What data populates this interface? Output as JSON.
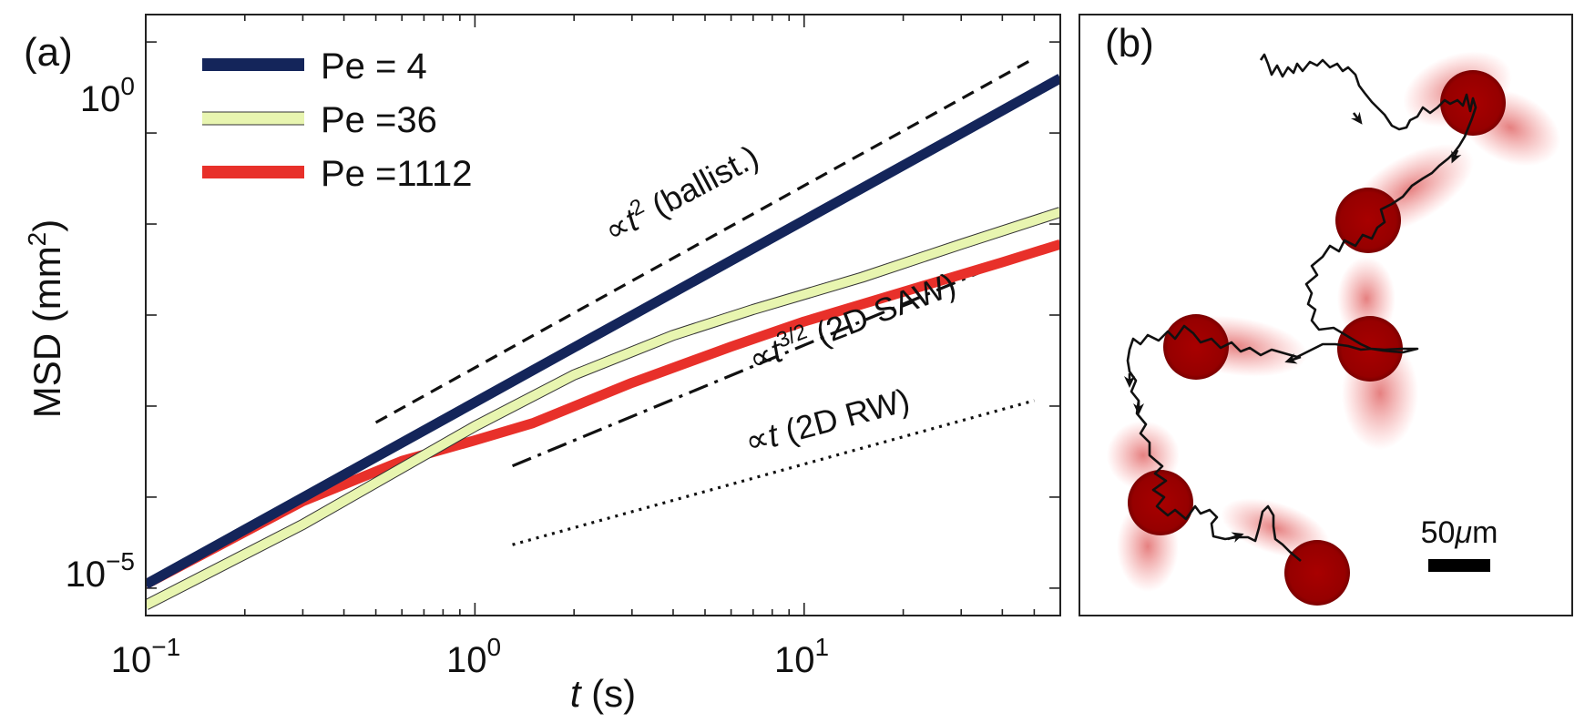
{
  "panel_a": {
    "label": "(a)",
    "x_label": {
      "symbol": "t",
      "unit": " (s)"
    },
    "y_label": {
      "base": "MSD (mm",
      "exp": "2",
      "close": ")"
    },
    "x_ticks": [
      {
        "base": "10",
        "exp": "−1",
        "value": -1
      },
      {
        "base": "10",
        "exp": "0",
        "value": 0
      },
      {
        "base": "10",
        "exp": "1",
        "value": 1
      }
    ],
    "y_ticks": [
      {
        "base": "10",
        "exp": "0",
        "value": 0
      },
      {
        "base": "10",
        "exp": "−5",
        "value": -5
      }
    ],
    "legend": [
      {
        "label": "Pe = 4",
        "color": "#14255a"
      },
      {
        "label": "Pe =36",
        "color": "#e8f5b0"
      },
      {
        "label": "Pe =1112",
        "color": "#e8302a"
      }
    ],
    "annotations": {
      "ballistic": {
        "prefix": "∝",
        "sym": "t",
        "exp": "2",
        "suffix": " (ballist.)"
      },
      "saw": {
        "prefix": "∝",
        "sym": "t",
        "exp": "3/2",
        "suffix": " (2D SAW)"
      },
      "rw": {
        "prefix": "∝",
        "sym": "t",
        "suffix": " (2D RW)"
      }
    }
  },
  "panel_b": {
    "label": "(b)",
    "scale_bar": {
      "value": "50",
      "unit_symbol": "μ",
      "unit": "m"
    }
  },
  "chart_data": {
    "type": "line",
    "title": "",
    "xlabel": "t (s)",
    "ylabel": "MSD (mm^2)",
    "xscale": "log",
    "yscale": "log",
    "xlim": [
      0.1,
      60
    ],
    "ylim": [
      5e-06,
      20
    ],
    "legend_position": "top-left",
    "series": [
      {
        "name": "Pe = 4",
        "color": "#14255a",
        "x": [
          0.1,
          0.3,
          1,
          3,
          10,
          30,
          60
        ],
        "y": [
          1.1e-05,
          9.9e-05,
          0.0011,
          0.0099,
          0.11,
          0.99,
          4.0
        ]
      },
      {
        "name": "Pe =36",
        "color": "#e8f5b0",
        "x": [
          0.1,
          0.3,
          1,
          2,
          4,
          7,
          15,
          30,
          60
        ],
        "y": [
          6.5e-06,
          5e-05,
          0.0006,
          0.0022,
          0.006,
          0.0115,
          0.026,
          0.06,
          0.135
        ]
      },
      {
        "name": "Pe =1112",
        "color": "#e8302a",
        "x": [
          0.1,
          0.3,
          0.6,
          1,
          1.5,
          3,
          6,
          10,
          20,
          40,
          60
        ],
        "y": [
          1.1e-05,
          9e-05,
          0.00025,
          0.00042,
          0.00065,
          0.0018,
          0.0045,
          0.0085,
          0.018,
          0.038,
          0.06
        ]
      }
    ],
    "reference_lines": [
      {
        "name": "∝ t^2 (ballist.)",
        "style": "dashed",
        "x": [
          0.5,
          50
        ],
        "y": [
          0.00066,
          6.6
        ]
      },
      {
        "name": "∝ t^3/2 (2D SAW)",
        "style": "dashdot",
        "x": [
          1.3,
          50
        ],
        "y": [
          0.00022,
          0.052
        ]
      },
      {
        "name": "∝ t (2D RW)",
        "style": "dotted",
        "x": [
          1.3,
          50
        ],
        "y": [
          3e-05,
          0.00115
        ]
      }
    ]
  }
}
